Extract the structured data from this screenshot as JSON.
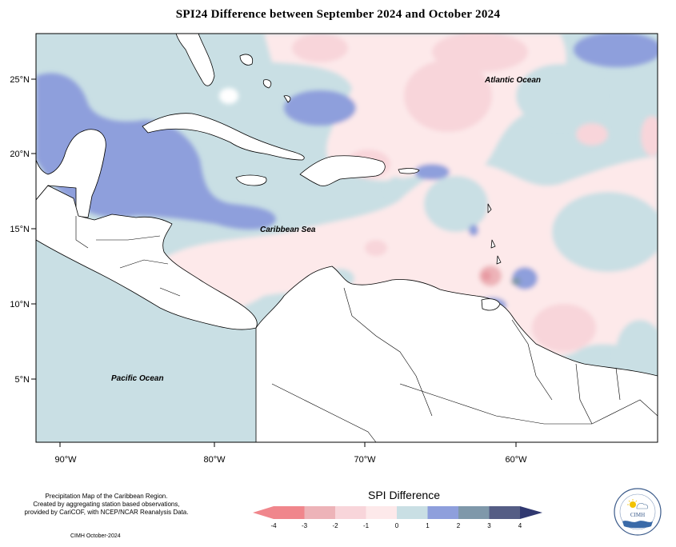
{
  "title": "SPI24 Difference between September 2024 and October 2024",
  "map": {
    "lon_ticks": [
      "90°W",
      "80°W",
      "70°W",
      "60°W"
    ],
    "lat_ticks": [
      "25°N",
      "20°N",
      "15°N",
      "10°N",
      "5°N"
    ],
    "labels": {
      "atlantic": "Atlantic Ocean",
      "caribbean": "Caribbean Sea",
      "pacific": "Pacific Ocean"
    }
  },
  "caption": {
    "line1": "Precipitation Map of the Caribbean Region.",
    "line2": "Created by aggregating station based observations,",
    "line3": "provided by CariCOF, with NCEP/NCAR Reanalysis Data."
  },
  "credit": "CIMH October-2024",
  "legend": {
    "title": "SPI Difference",
    "ticks": [
      "-4",
      "-3",
      "-2",
      "-1",
      "0",
      "1",
      "2",
      "3",
      "4"
    ],
    "colors": [
      "#f0868c",
      "#edb3b8",
      "#f8d5da",
      "#fde9ea",
      "#c9dfe4",
      "#8e9fdc",
      "#7f98aa",
      "#555d85",
      "#303870"
    ],
    "under_color": "#f0868c",
    "over_color": "#303870"
  },
  "logo": {
    "text": "CIMH"
  }
}
